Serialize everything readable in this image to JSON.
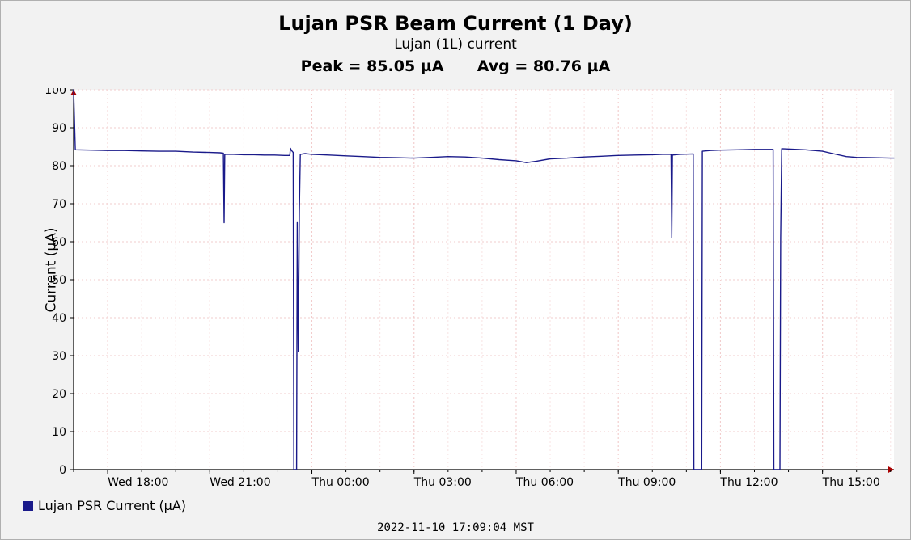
{
  "title": "Lujan PSR Beam Current (1 Day)",
  "subtitle": "Lujan (1L) current",
  "peak_label": "Peak = 85.05 µA",
  "avg_label": "Avg = 80.76 µA",
  "y_axis_label": "Current (µA)",
  "legend_text": "Lujan PSR Current (µA)",
  "timestamp": "2022-11-10 17:09:04 MST",
  "chart": {
    "type": "line",
    "background": "#ffffff",
    "frame_background": "#f2f2f2",
    "line_color": "#1a1a8a",
    "line_width": 1.4,
    "axis_color": "#000000",
    "arrow_color": "#aa0000",
    "grid_major_color": "#f2cccc",
    "grid_minor_color": "#f8e3e3",
    "grid_dash": "2,3",
    "xmin_h": 17.0,
    "xmax_h": 41.1,
    "ymin": 0,
    "ymax": 100,
    "ytick_step": 10,
    "x_major_ticks_h": [
      18,
      21,
      24,
      27,
      30,
      33,
      36,
      39
    ],
    "x_tick_labels": [
      "Wed 18:00",
      "Wed 21:00",
      "Thu 00:00",
      "Thu 03:00",
      "Thu 06:00",
      "Thu 09:00",
      "Thu 12:00",
      "Thu 15:00"
    ],
    "x_minor_step_h": 1,
    "series": [
      [
        17.0,
        100
      ],
      [
        17.05,
        84.2
      ],
      [
        17.5,
        84.1
      ],
      [
        18.0,
        84.0
      ],
      [
        18.5,
        84.0
      ],
      [
        19.0,
        83.9
      ],
      [
        19.5,
        83.8
      ],
      [
        20.0,
        83.8
      ],
      [
        20.5,
        83.6
      ],
      [
        21.0,
        83.5
      ],
      [
        21.3,
        83.4
      ],
      [
        21.4,
        83.3
      ],
      [
        21.42,
        65.0
      ],
      [
        21.44,
        83.0
      ],
      [
        21.7,
        83.0
      ],
      [
        22.0,
        82.9
      ],
      [
        22.3,
        82.9
      ],
      [
        22.6,
        82.8
      ],
      [
        22.9,
        82.8
      ],
      [
        23.2,
        82.7
      ],
      [
        23.35,
        82.7
      ],
      [
        23.37,
        84.6
      ],
      [
        23.4,
        84.0
      ],
      [
        23.45,
        83.5
      ],
      [
        23.47,
        0.0
      ],
      [
        23.55,
        0.0
      ],
      [
        23.57,
        65.0
      ],
      [
        23.6,
        31.0
      ],
      [
        23.63,
        68.0
      ],
      [
        23.66,
        83.0
      ],
      [
        23.8,
        83.2
      ],
      [
        24.0,
        83.0
      ],
      [
        24.5,
        82.8
      ],
      [
        25.0,
        82.6
      ],
      [
        25.5,
        82.4
      ],
      [
        26.0,
        82.2
      ],
      [
        26.5,
        82.1
      ],
      [
        27.0,
        82.0
      ],
      [
        27.5,
        82.2
      ],
      [
        28.0,
        82.4
      ],
      [
        28.5,
        82.3
      ],
      [
        29.0,
        82.0
      ],
      [
        29.5,
        81.6
      ],
      [
        30.0,
        81.3
      ],
      [
        30.3,
        80.8
      ],
      [
        30.6,
        81.2
      ],
      [
        31.0,
        81.8
      ],
      [
        31.5,
        82.0
      ],
      [
        32.0,
        82.3
      ],
      [
        32.5,
        82.5
      ],
      [
        33.0,
        82.7
      ],
      [
        33.5,
        82.8
      ],
      [
        34.0,
        82.9
      ],
      [
        34.3,
        83.0
      ],
      [
        34.55,
        83.0
      ],
      [
        34.57,
        61.0
      ],
      [
        34.59,
        82.8
      ],
      [
        34.8,
        83.0
      ],
      [
        35.2,
        83.1
      ],
      [
        35.22,
        0.0
      ],
      [
        35.45,
        0.0
      ],
      [
        35.47,
        83.8
      ],
      [
        35.7,
        84.0
      ],
      [
        36.0,
        84.1
      ],
      [
        36.5,
        84.2
      ],
      [
        37.0,
        84.3
      ],
      [
        37.3,
        84.3
      ],
      [
        37.55,
        84.3
      ],
      [
        37.57,
        0.0
      ],
      [
        37.75,
        0.0
      ],
      [
        37.77,
        61.0
      ],
      [
        37.8,
        84.5
      ],
      [
        38.0,
        84.4
      ],
      [
        38.5,
        84.2
      ],
      [
        39.0,
        83.8
      ],
      [
        39.3,
        83.2
      ],
      [
        39.7,
        82.4
      ],
      [
        40.0,
        82.2
      ],
      [
        40.5,
        82.1
      ],
      [
        41.0,
        82.0
      ],
      [
        41.1,
        82.0
      ]
    ]
  }
}
